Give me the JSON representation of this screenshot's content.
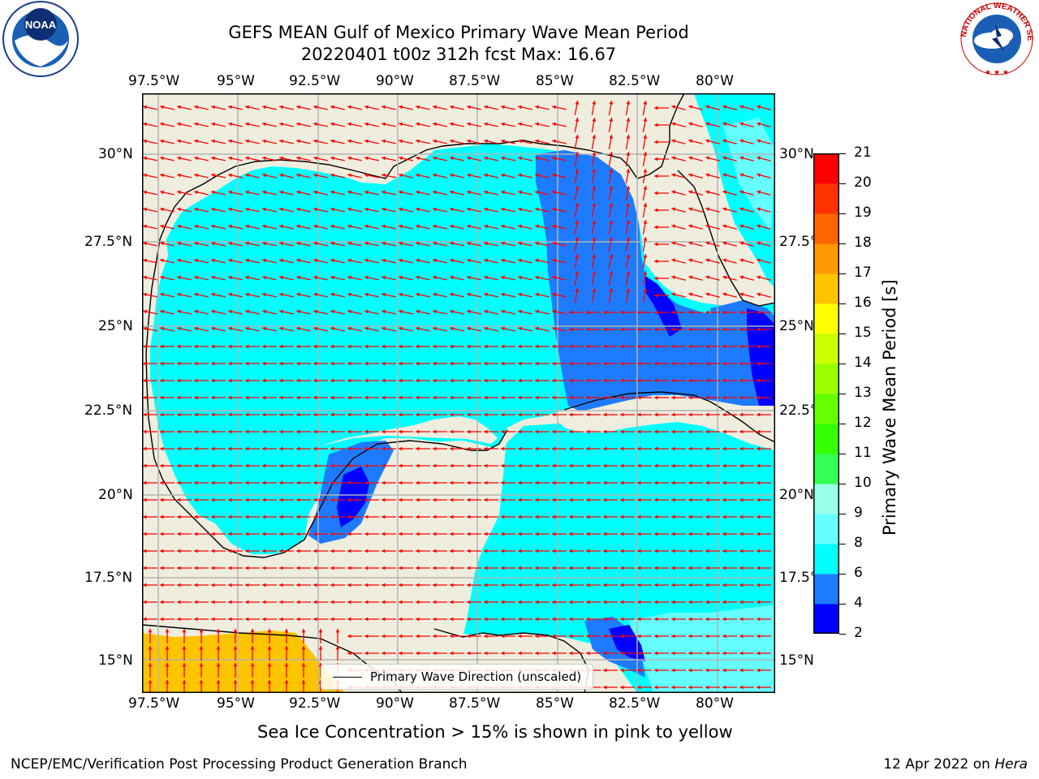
{
  "header": {
    "title_line1": "GEFS MEAN Gulf of Mexico Primary Wave Mean Period",
    "title_line2": "20220401 t00z 312h fcst   Max: 16.67"
  },
  "logos": {
    "left": "NOAA",
    "right": "NATIONAL WEATHER SERVICE"
  },
  "map": {
    "lon_ticks": [
      "97.5°W",
      "95°W",
      "92.5°W",
      "90°W",
      "87.5°W",
      "85°W",
      "82.5°W",
      "80°W"
    ],
    "lat_ticks": [
      "30°N",
      "27.5°N",
      "25°N",
      "22.5°N",
      "20°N",
      "17.5°N",
      "15°N"
    ],
    "colors": {
      "land": "#efedde",
      "ocean_6_8": "#00ffff",
      "ocean_4_6": "#1e7bff",
      "ocean_2_4": "#0000ff",
      "ocean_8_9": "#66ffff",
      "ice": "#ffc400",
      "arrow": "#ff0000",
      "grid": "#b3b3b3"
    },
    "legend_label": "Primary Wave Direction (unscaled)"
  },
  "colorbar": {
    "label": "Primary Wave Mean Period [s]",
    "ticks": [
      "21",
      "20",
      "19",
      "18",
      "17",
      "16",
      "15",
      "14",
      "13",
      "12",
      "11",
      "10",
      "9",
      "8",
      "6",
      "4",
      "2"
    ],
    "colors": [
      "#0000ff",
      "#1e7bff",
      "#00ffff",
      "#66ffff",
      "#99ffe6",
      "#33ff55",
      "#33ff00",
      "#66ff00",
      "#99ff00",
      "#ccff00",
      "#ffff00",
      "#ffc400",
      "#ff9900",
      "#ff6600",
      "#ff3300",
      "#ff0000"
    ]
  },
  "caption": "Sea Ice Concentration > 15% is shown in pink to yellow",
  "footer": {
    "left": "NCEP/EMC/Verification Post Processing Product Generation Branch",
    "right_date": "12 Apr 2022 on ",
    "right_host": "Hera"
  }
}
